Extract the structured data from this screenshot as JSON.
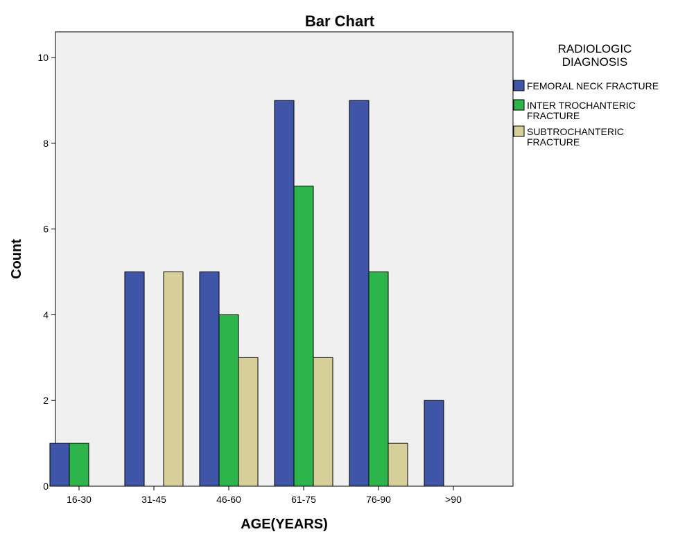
{
  "chart_data": {
    "type": "bar",
    "title": "Bar Chart",
    "xlabel": "AGE(YEARS)",
    "ylabel": "Count",
    "categories": [
      "16-30",
      "31-45",
      "46-60",
      "61-75",
      "76-90",
      ">90"
    ],
    "yticks": [
      "0",
      "2",
      "4",
      "6",
      "8",
      "10"
    ],
    "ylim": [
      0,
      10.6
    ],
    "legend": {
      "title_lines": [
        "RADIOLOGIC",
        "DIAGNOSIS"
      ],
      "placement": "right"
    },
    "series": [
      {
        "label_lines": [
          "FEMORAL NECK FRACTURE"
        ],
        "color": "#3f56a8",
        "values": [
          1,
          5,
          5,
          9,
          9,
          2
        ]
      },
      {
        "label_lines": [
          "INTER TROCHANTERIC",
          "FRACTURE"
        ],
        "color": "#2db54b",
        "values": [
          1,
          0,
          4,
          7,
          5,
          0
        ]
      },
      {
        "label_lines": [
          "SUBTROCHANTERIC",
          "FRACTURE"
        ],
        "color": "#d6cf9a",
        "values": [
          0,
          5,
          3,
          3,
          1,
          0
        ]
      }
    ],
    "plot_background": "#f0f0f0",
    "grid": false
  }
}
